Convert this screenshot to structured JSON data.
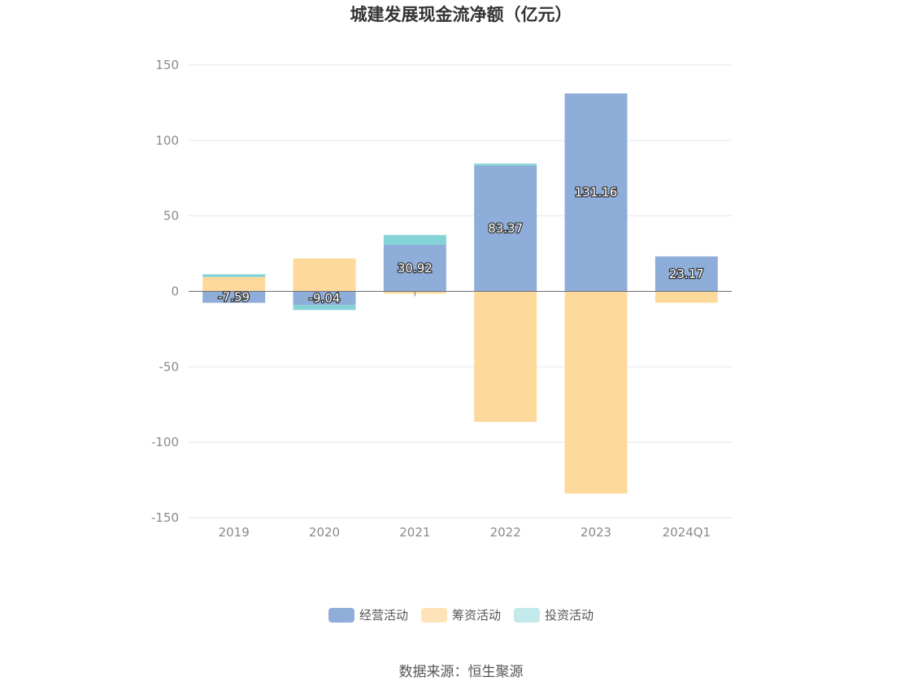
{
  "chart_data": {
    "type": "bar",
    "stacked": true,
    "title": "城建发展现金流净额（亿元）",
    "categories": [
      "2019",
      "2020",
      "2021",
      "2022",
      "2023",
      "2024Q1"
    ],
    "series": [
      {
        "name": "经营活动",
        "color": "#8eadd9",
        "values": [
          -7.59,
          -9.04,
          30.92,
          83.37,
          131.16,
          23.17
        ]
      },
      {
        "name": "筹资活动",
        "color": "#fed99c",
        "values": [
          9.5,
          21.8,
          -1.5,
          -86.5,
          -134.0,
          -7.5
        ]
      },
      {
        "name": "投资活动",
        "color": "#84d3d6",
        "values": [
          1.8,
          -3.3,
          6.4,
          1.3,
          0.0,
          0.0
        ]
      }
    ],
    "data_labels": [
      "-7.59",
      "-9.04",
      "30.92",
      "83.37",
      "131.16",
      "23.17"
    ],
    "ylim": [
      -150,
      150
    ],
    "yticks": [
      150,
      100,
      50,
      0,
      -50,
      -100,
      -150
    ],
    "grid": true,
    "legend_position": "bottom",
    "xlabel": "",
    "ylabel": ""
  },
  "legend_swatch_colors": [
    "#8eadd9",
    "#fee3b8",
    "#c3e9eb"
  ],
  "source_text": "数据来源：恒生聚源"
}
